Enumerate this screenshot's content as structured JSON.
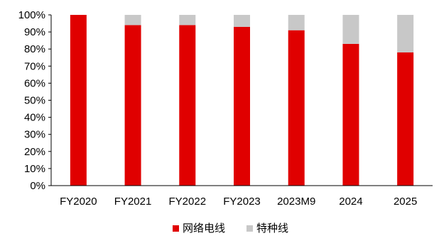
{
  "chart_data": {
    "type": "bar",
    "stacked": true,
    "categories": [
      "FY2020",
      "FY2021",
      "FY2022",
      "FY2023",
      "2023M9",
      "2024",
      "2025"
    ],
    "series": [
      {
        "name": "网络电线",
        "color": "#e00000",
        "values": [
          100,
          94,
          94,
          93,
          91,
          83,
          78
        ]
      },
      {
        "name": "特种线",
        "color": "#c8c8c8",
        "values": [
          0,
          6,
          6,
          7,
          9,
          17,
          22
        ]
      }
    ],
    "y_ticks": [
      "0%",
      "10%",
      "20%",
      "30%",
      "40%",
      "50%",
      "60%",
      "70%",
      "80%",
      "90%",
      "100%"
    ],
    "ylim": [
      0,
      100
    ],
    "legend_position": "bottom",
    "grid": false
  }
}
